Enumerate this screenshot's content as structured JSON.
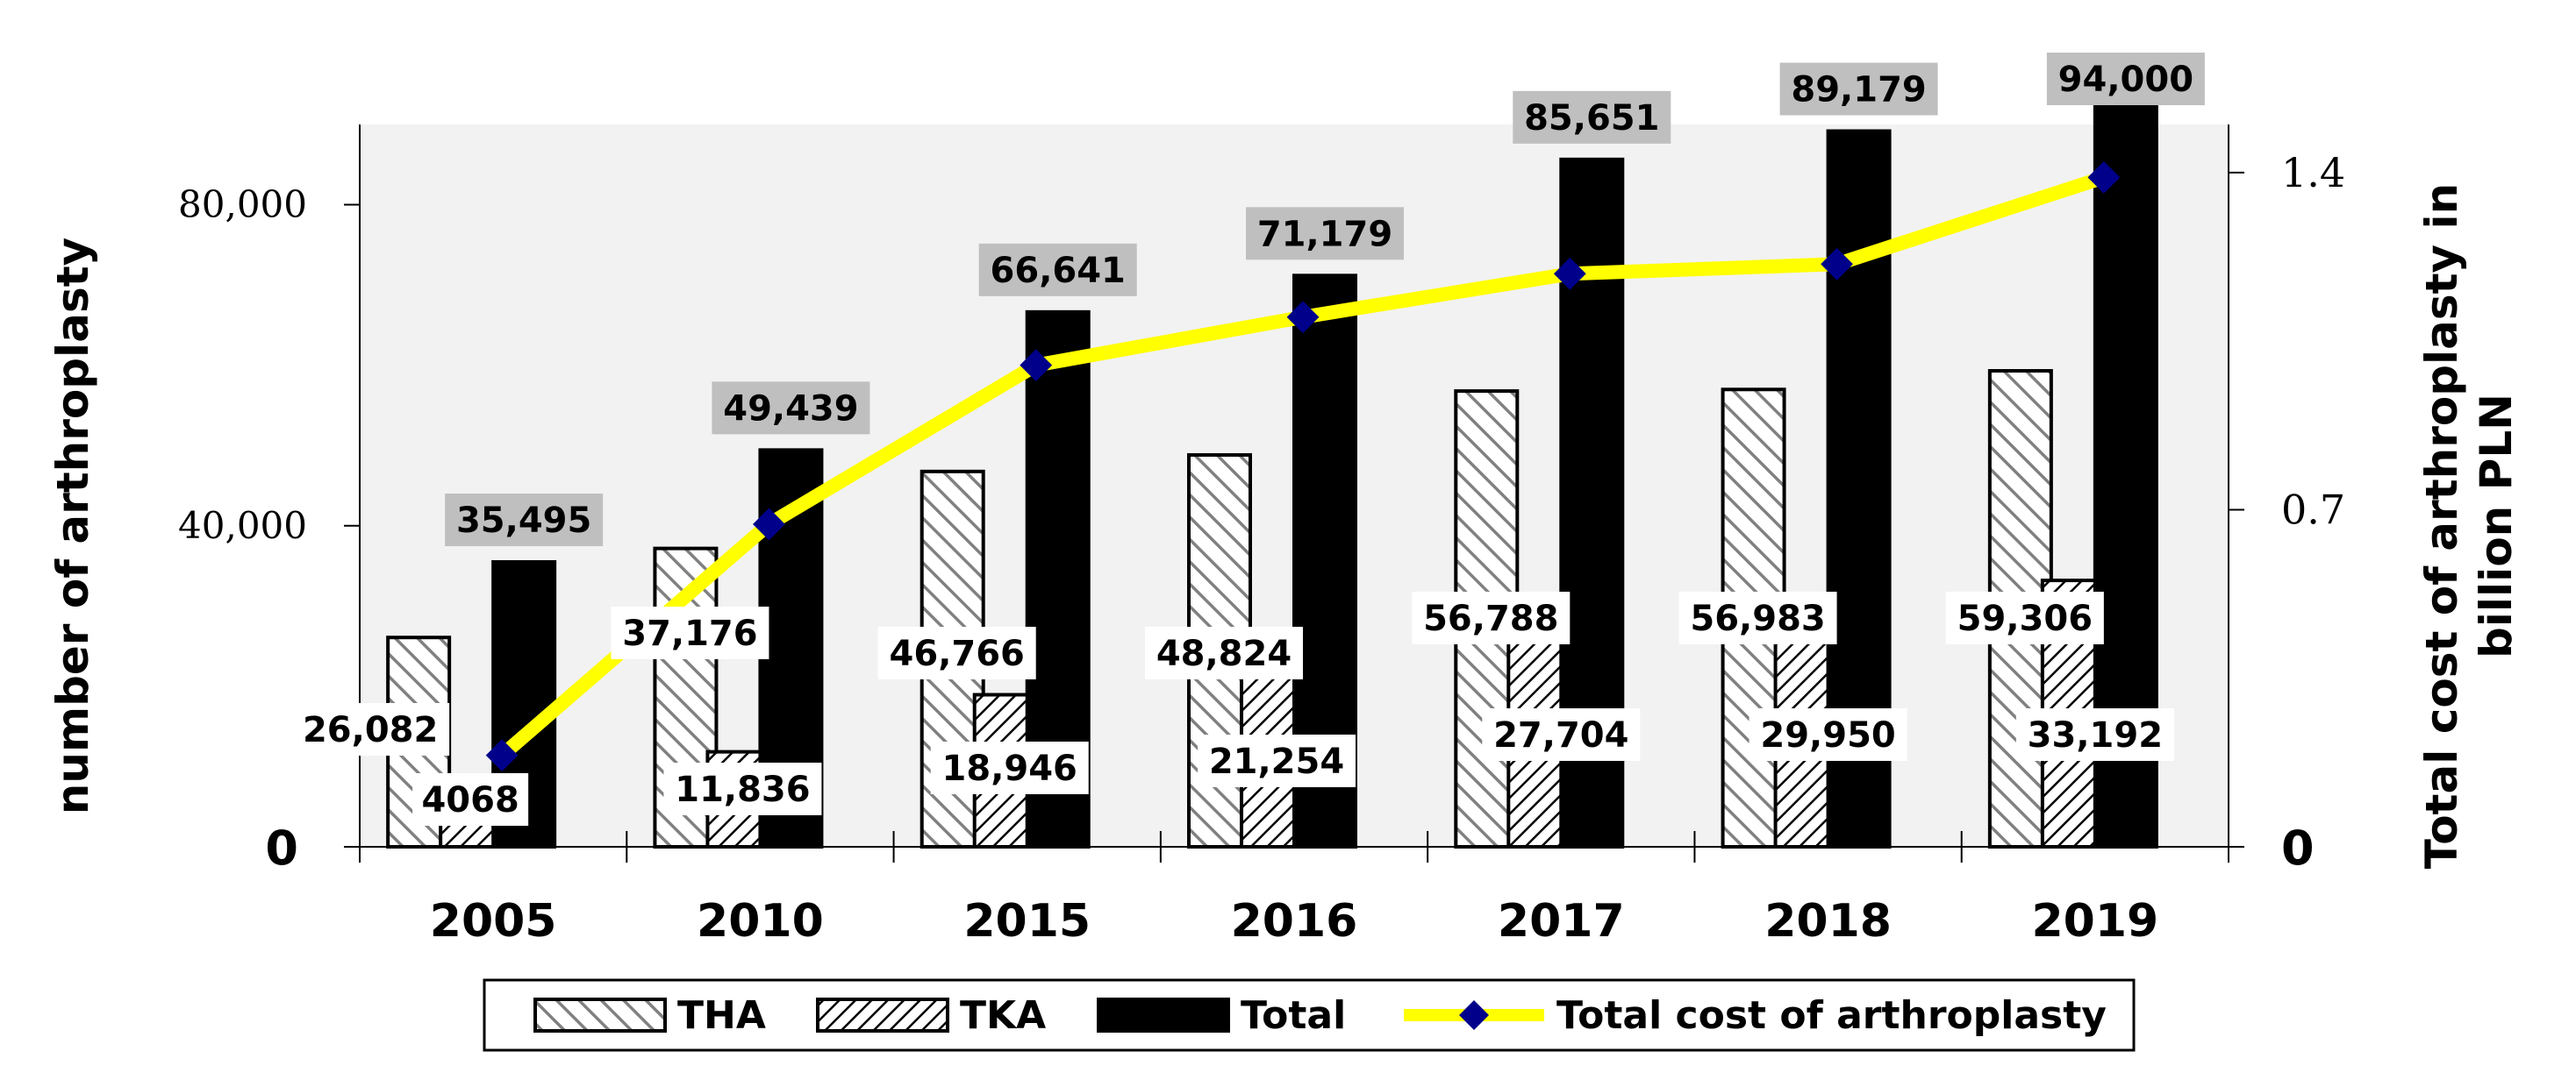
{
  "chart_data": {
    "type": "bar",
    "categories": [
      "2005",
      "2010",
      "2015",
      "2016",
      "2017",
      "2018",
      "2019"
    ],
    "series": [
      {
        "name": "THA",
        "axis": "left",
        "values": [
          26082,
          37176,
          46766,
          48824,
          56788,
          56983,
          59306
        ],
        "labels": [
          "26,082",
          "37,176",
          "46,766",
          "48,824",
          "56,788",
          "56,983",
          "59,306"
        ]
      },
      {
        "name": "TKA",
        "axis": "left",
        "values": [
          4068,
          11836,
          18946,
          21254,
          27704,
          29950,
          33192
        ],
        "labels": [
          "4068",
          "11,836",
          "18,946",
          "21,254",
          "27,704",
          "29,950",
          "33,192"
        ]
      },
      {
        "name": "Total",
        "axis": "left",
        "values": [
          35495,
          49439,
          66641,
          71179,
          85651,
          89179,
          94000
        ],
        "labels": [
          "35,495",
          "49,439",
          "66,641",
          "71,179",
          "85,651",
          "89,179",
          "94,000"
        ]
      },
      {
        "name": "Total cost of arthroplasty",
        "axis": "right",
        "type": "line",
        "values": [
          0.19,
          0.67,
          1.0,
          1.1,
          1.19,
          1.21,
          1.39
        ]
      }
    ],
    "ylabel": "number of arthroplasty",
    "y2label_line1": "Total cost of arthroplasty in",
    "y2label_line2": "billion PLN",
    "ylim": [
      0,
      90000
    ],
    "y2lim": [
      0,
      1.5
    ],
    "yticks": [
      {
        "value": 0,
        "label": "0"
      },
      {
        "value": 40000,
        "label": "40,000"
      },
      {
        "value": 80000,
        "label": "80,000"
      }
    ],
    "y2ticks": [
      {
        "value": 0,
        "label": "0"
      },
      {
        "value": 0.7,
        "label": "0.7"
      },
      {
        "value": 1.4,
        "label": "1.4"
      }
    ],
    "legend_position": "bottom",
    "colors": {
      "plot_bg": "#f2f2f2",
      "total_bar": "#000000",
      "line": "#ffff00",
      "marker": "#00008b",
      "total_label_bg": "#bfbfbf",
      "label_bg": "#ffffff"
    }
  }
}
